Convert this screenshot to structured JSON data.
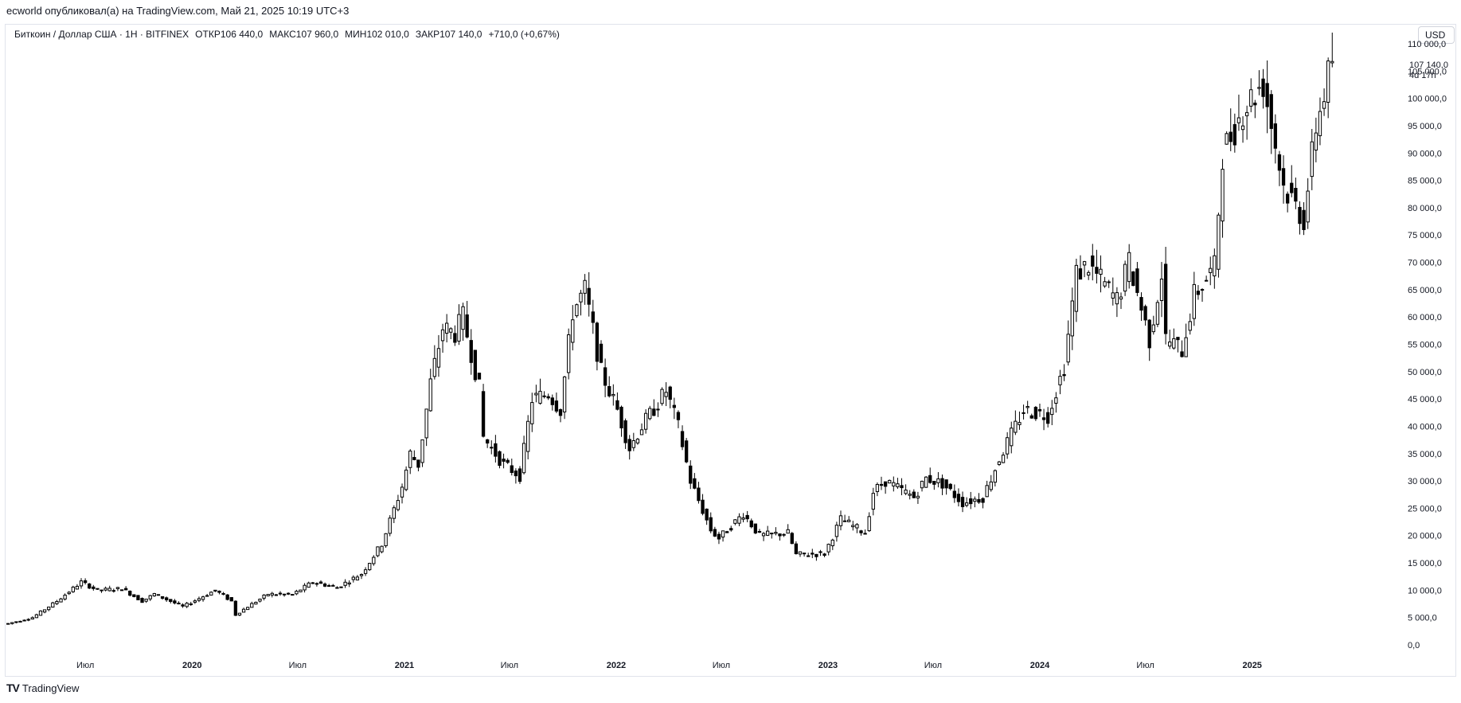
{
  "header": {
    "caption": "ecworld опубликовал(а) на TradingView.com, Май 21, 2025 10:19 UTC+3"
  },
  "legend": {
    "symbol": "Биткоин / Доллар США · 1Н · BITFINEX",
    "open_label": "ОТКР",
    "open_value": "106 440,0",
    "high_label": "МАКС",
    "high_value": "107 960,0",
    "low_label": "МИН",
    "low_value": "102 010,0",
    "close_label": "ЗАКР",
    "close_value": "107 140,0",
    "change": "+710,0 (+0,67%)"
  },
  "currency_button": {
    "label": "USD"
  },
  "last_price": {
    "value": "107 140,0",
    "countdown": "4d 17h"
  },
  "footer": {
    "logo": "TV",
    "brand": "TradingView"
  },
  "chart_data": {
    "type": "candlestick",
    "interval": "1W",
    "x_type": "date",
    "x_range": [
      "2019-02-15",
      "2025-09-15"
    ],
    "ylim": [
      0,
      110000
    ],
    "grid": false,
    "y_ticks": [
      "110 000,0",
      "105 000,0",
      "100 000,0",
      "95 000,0",
      "90 000,0",
      "85 000,0",
      "80 000,0",
      "75 000,0",
      "70 000,0",
      "65 000,0",
      "60 000,0",
      "55 000,0",
      "50 000,0",
      "45 000,0",
      "40 000,0",
      "35 000,0",
      "30 000,0",
      "25 000,0",
      "20 000,0",
      "15 000,0",
      "10 000,0",
      "5 000,0",
      "0,0"
    ],
    "y_tick_values": [
      110000,
      105000,
      100000,
      95000,
      90000,
      85000,
      80000,
      75000,
      70000,
      65000,
      60000,
      55000,
      50000,
      45000,
      40000,
      35000,
      30000,
      25000,
      20000,
      15000,
      10000,
      5000,
      0
    ],
    "x_ticks": [
      {
        "label": "Июл",
        "date": "2019-07-01",
        "bold": false
      },
      {
        "label": "2020",
        "date": "2020-01-01",
        "bold": true
      },
      {
        "label": "Июл",
        "date": "2020-07-01",
        "bold": false
      },
      {
        "label": "2021",
        "date": "2021-01-01",
        "bold": true
      },
      {
        "label": "Июл",
        "date": "2021-07-01",
        "bold": false
      },
      {
        "label": "2022",
        "date": "2022-01-01",
        "bold": true
      },
      {
        "label": "Июл",
        "date": "2022-07-01",
        "bold": false
      },
      {
        "label": "2023",
        "date": "2023-01-01",
        "bold": true
      },
      {
        "label": "Июл",
        "date": "2023-07-01",
        "bold": false
      },
      {
        "label": "2024",
        "date": "2024-01-01",
        "bold": true
      },
      {
        "label": "Июл",
        "date": "2024-07-01",
        "bold": false
      },
      {
        "label": "2025",
        "date": "2025-01-01",
        "bold": true
      }
    ],
    "anchors": [
      {
        "date": "2019-02-18",
        "close": 3900
      },
      {
        "date": "2019-04-01",
        "close": 5000
      },
      {
        "date": "2019-05-13",
        "close": 8000
      },
      {
        "date": "2019-06-24",
        "close": 11500
      },
      {
        "date": "2019-07-22",
        "close": 10000
      },
      {
        "date": "2019-09-02",
        "close": 10300
      },
      {
        "date": "2019-10-07",
        "close": 8000
      },
      {
        "date": "2019-10-28",
        "close": 9300
      },
      {
        "date": "2019-12-16",
        "close": 7000
      },
      {
        "date": "2020-02-10",
        "close": 10000
      },
      {
        "date": "2020-03-09",
        "close": 8000
      },
      {
        "date": "2020-03-16",
        "close": 5500
      },
      {
        "date": "2020-04-06",
        "close": 7000
      },
      {
        "date": "2020-05-11",
        "close": 9300
      },
      {
        "date": "2020-06-22",
        "close": 9200
      },
      {
        "date": "2020-07-27",
        "close": 11500
      },
      {
        "date": "2020-09-07",
        "close": 10500
      },
      {
        "date": "2020-10-19",
        "close": 13000
      },
      {
        "date": "2020-11-23",
        "close": 18500
      },
      {
        "date": "2020-12-28",
        "close": 29000
      },
      {
        "date": "2021-01-11",
        "close": 35000
      },
      {
        "date": "2021-01-25",
        "close": 33000
      },
      {
        "date": "2021-02-15",
        "close": 48000
      },
      {
        "date": "2021-03-08",
        "close": 58000
      },
      {
        "date": "2021-03-29",
        "close": 57000
      },
      {
        "date": "2021-04-12",
        "close": 60000
      },
      {
        "date": "2021-05-10",
        "close": 47000
      },
      {
        "date": "2021-05-17",
        "close": 38000
      },
      {
        "date": "2021-06-21",
        "close": 33000
      },
      {
        "date": "2021-07-19",
        "close": 31000
      },
      {
        "date": "2021-08-09",
        "close": 45000
      },
      {
        "date": "2021-09-06",
        "close": 46000
      },
      {
        "date": "2021-09-27",
        "close": 43000
      },
      {
        "date": "2021-10-18",
        "close": 61000
      },
      {
        "date": "2021-11-08",
        "close": 65000
      },
      {
        "date": "2021-12-06",
        "close": 50000
      },
      {
        "date": "2022-01-03",
        "close": 43000
      },
      {
        "date": "2022-01-24",
        "close": 36000
      },
      {
        "date": "2022-02-14",
        "close": 40000
      },
      {
        "date": "2022-03-28",
        "close": 46500
      },
      {
        "date": "2022-04-18",
        "close": 40000
      },
      {
        "date": "2022-05-09",
        "close": 30000
      },
      {
        "date": "2022-06-13",
        "close": 21000
      },
      {
        "date": "2022-06-27",
        "close": 19500
      },
      {
        "date": "2022-08-08",
        "close": 24000
      },
      {
        "date": "2022-09-05",
        "close": 20000
      },
      {
        "date": "2022-10-24",
        "close": 20500
      },
      {
        "date": "2022-11-07",
        "close": 16500
      },
      {
        "date": "2022-12-26",
        "close": 16700
      },
      {
        "date": "2023-01-23",
        "close": 23000
      },
      {
        "date": "2023-03-06",
        "close": 20500
      },
      {
        "date": "2023-03-20",
        "close": 28000
      },
      {
        "date": "2023-04-10",
        "close": 30000
      },
      {
        "date": "2023-05-29",
        "close": 27000
      },
      {
        "date": "2023-06-19",
        "close": 30500
      },
      {
        "date": "2023-07-17",
        "close": 29500
      },
      {
        "date": "2023-08-21",
        "close": 26000
      },
      {
        "date": "2023-09-25",
        "close": 27000
      },
      {
        "date": "2023-10-23",
        "close": 34000
      },
      {
        "date": "2023-12-04",
        "close": 43000
      },
      {
        "date": "2024-01-15",
        "close": 42000
      },
      {
        "date": "2024-02-12",
        "close": 51000
      },
      {
        "date": "2024-03-04",
        "close": 68000
      },
      {
        "date": "2024-03-25",
        "close": 69500
      },
      {
        "date": "2024-05-13",
        "close": 63000
      },
      {
        "date": "2024-06-03",
        "close": 70000
      },
      {
        "date": "2024-07-08",
        "close": 56000
      },
      {
        "date": "2024-07-29",
        "close": 68000
      },
      {
        "date": "2024-08-05",
        "close": 56000
      },
      {
        "date": "2024-09-02",
        "close": 54000
      },
      {
        "date": "2024-09-23",
        "close": 64000
      },
      {
        "date": "2024-10-28",
        "close": 69000
      },
      {
        "date": "2024-11-11",
        "close": 90000
      },
      {
        "date": "2024-12-16",
        "close": 98000
      },
      {
        "date": "2025-01-20",
        "close": 103000
      },
      {
        "date": "2025-02-24",
        "close": 84000
      },
      {
        "date": "2025-03-31",
        "close": 78000
      },
      {
        "date": "2025-04-21",
        "close": 95000
      },
      {
        "date": "2025-05-19",
        "close": 107140
      }
    ]
  }
}
